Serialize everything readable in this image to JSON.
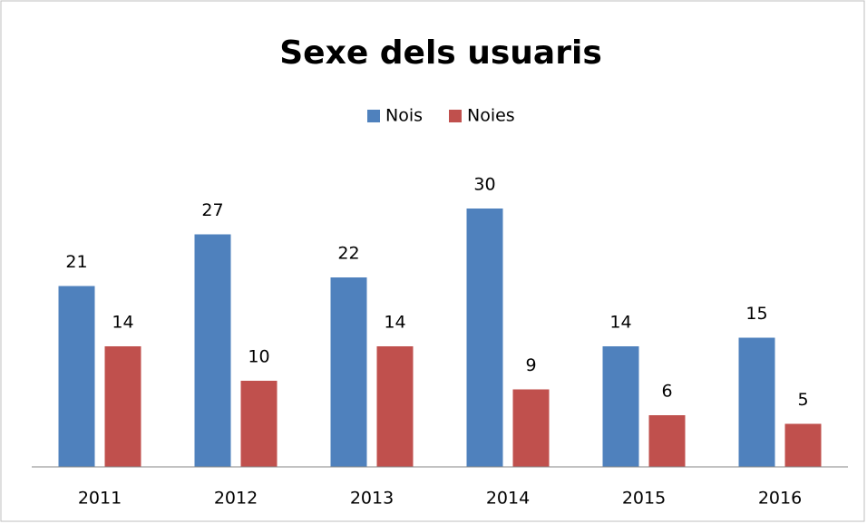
{
  "chart_data": {
    "type": "bar",
    "title": "Sexe dels usuaris",
    "categories": [
      "2011",
      "2012",
      "2013",
      "2014",
      "2015",
      "2016"
    ],
    "series": [
      {
        "name": "Nois",
        "color": "#4f81bd",
        "values": [
          21,
          27,
          22,
          30,
          14,
          15
        ]
      },
      {
        "name": "Noies",
        "color": "#c0504d",
        "values": [
          14,
          10,
          14,
          9,
          6,
          5
        ]
      }
    ],
    "legend": "top"
  }
}
